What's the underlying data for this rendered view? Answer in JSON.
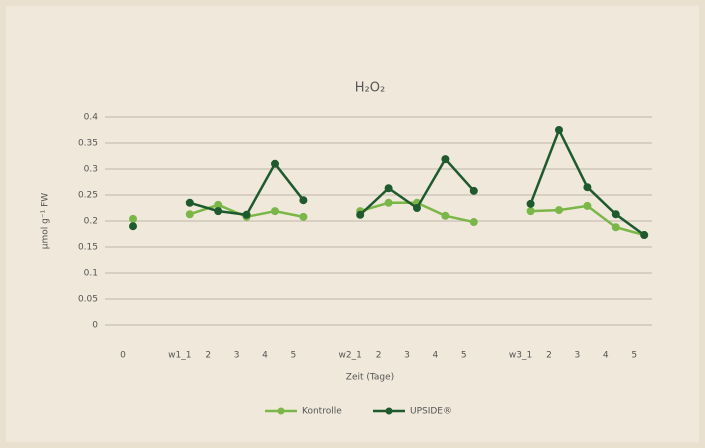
{
  "chart_data": {
    "type": "line",
    "title": "H₂O₂",
    "x_label": "Zeit (Tage)",
    "y_label": "µmol g⁻¹ FW",
    "categories": [
      "0",
      null,
      "w1_1",
      "2",
      "3",
      "4",
      "5",
      null,
      "w2_1",
      "2",
      "3",
      "4",
      "5",
      null,
      "w3_1",
      "2",
      "3",
      "4",
      "5"
    ],
    "series": [
      {
        "name": "Kontrolle",
        "color": "#7ab648",
        "values": [
          0.204,
          null,
          0.213,
          0.231,
          0.208,
          0.219,
          0.208,
          null,
          0.219,
          0.235,
          0.235,
          0.21,
          0.198,
          null,
          0.219,
          0.221,
          0.229,
          0.188,
          0.173
        ]
      },
      {
        "name": "UPSIDE®",
        "color": "#1e5a2e",
        "values": [
          0.19,
          null,
          0.235,
          0.219,
          0.212,
          0.31,
          0.24,
          null,
          0.212,
          0.263,
          0.225,
          0.319,
          0.258,
          null,
          0.233,
          0.375,
          0.265,
          0.213,
          0.173
        ]
      }
    ],
    "ylim": [
      0,
      0.4
    ],
    "yticks": [
      0,
      0.05,
      0.1,
      0.15,
      0.2,
      0.25,
      0.3,
      0.35,
      0.4
    ],
    "grid": true,
    "legend": "bottom"
  }
}
